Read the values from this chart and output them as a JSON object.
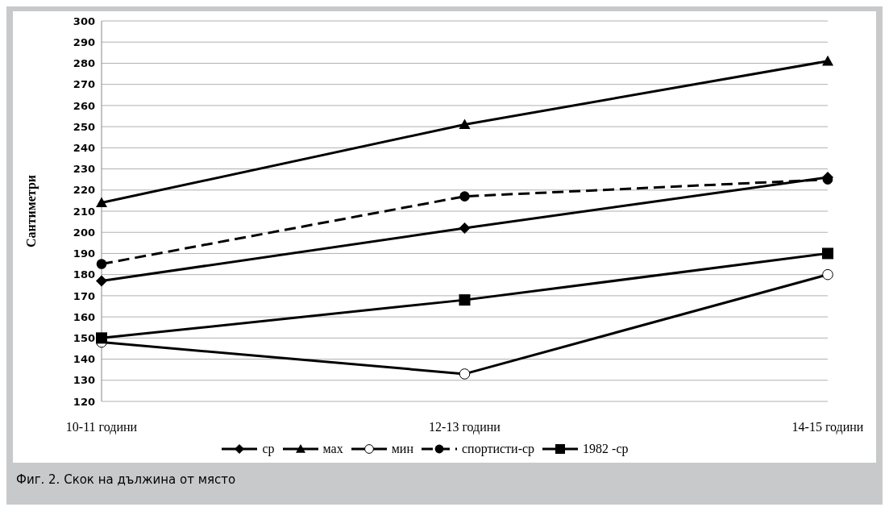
{
  "chart_data": {
    "type": "line",
    "ylabel": "Сантиметри",
    "categories": [
      "10-11 години",
      "12-13 години",
      "14-15 години"
    ],
    "series": [
      {
        "name": "ср",
        "color": "#000000",
        "marker": "diamond",
        "line_style": "solid",
        "values": [
          177,
          202,
          226
        ]
      },
      {
        "name": "мах",
        "color": "#000000",
        "marker": "triangle",
        "line_style": "solid",
        "values": [
          214,
          251,
          281
        ]
      },
      {
        "name": "мин",
        "color": "#000000",
        "marker": "circle-open",
        "line_style": "solid",
        "values": [
          148,
          133,
          180
        ]
      },
      {
        "name": "спортисти-ср",
        "color": "#000000",
        "marker": "circle",
        "line_style": "dashed",
        "values": [
          185,
          217,
          225
        ]
      },
      {
        "name": "1982 -ср",
        "color": "#000000",
        "marker": "square",
        "line_style": "solid",
        "values": [
          150,
          168,
          190
        ]
      }
    ],
    "ylim": [
      120,
      300
    ],
    "yticks": [
      120,
      130,
      140,
      150,
      160,
      170,
      180,
      190,
      200,
      210,
      220,
      230,
      240,
      250,
      260,
      270,
      280,
      290,
      300
    ],
    "grid": "y",
    "legend": "bottom",
    "annotations": [
      "Фиг. 2. Скок на дължина от място"
    ]
  }
}
